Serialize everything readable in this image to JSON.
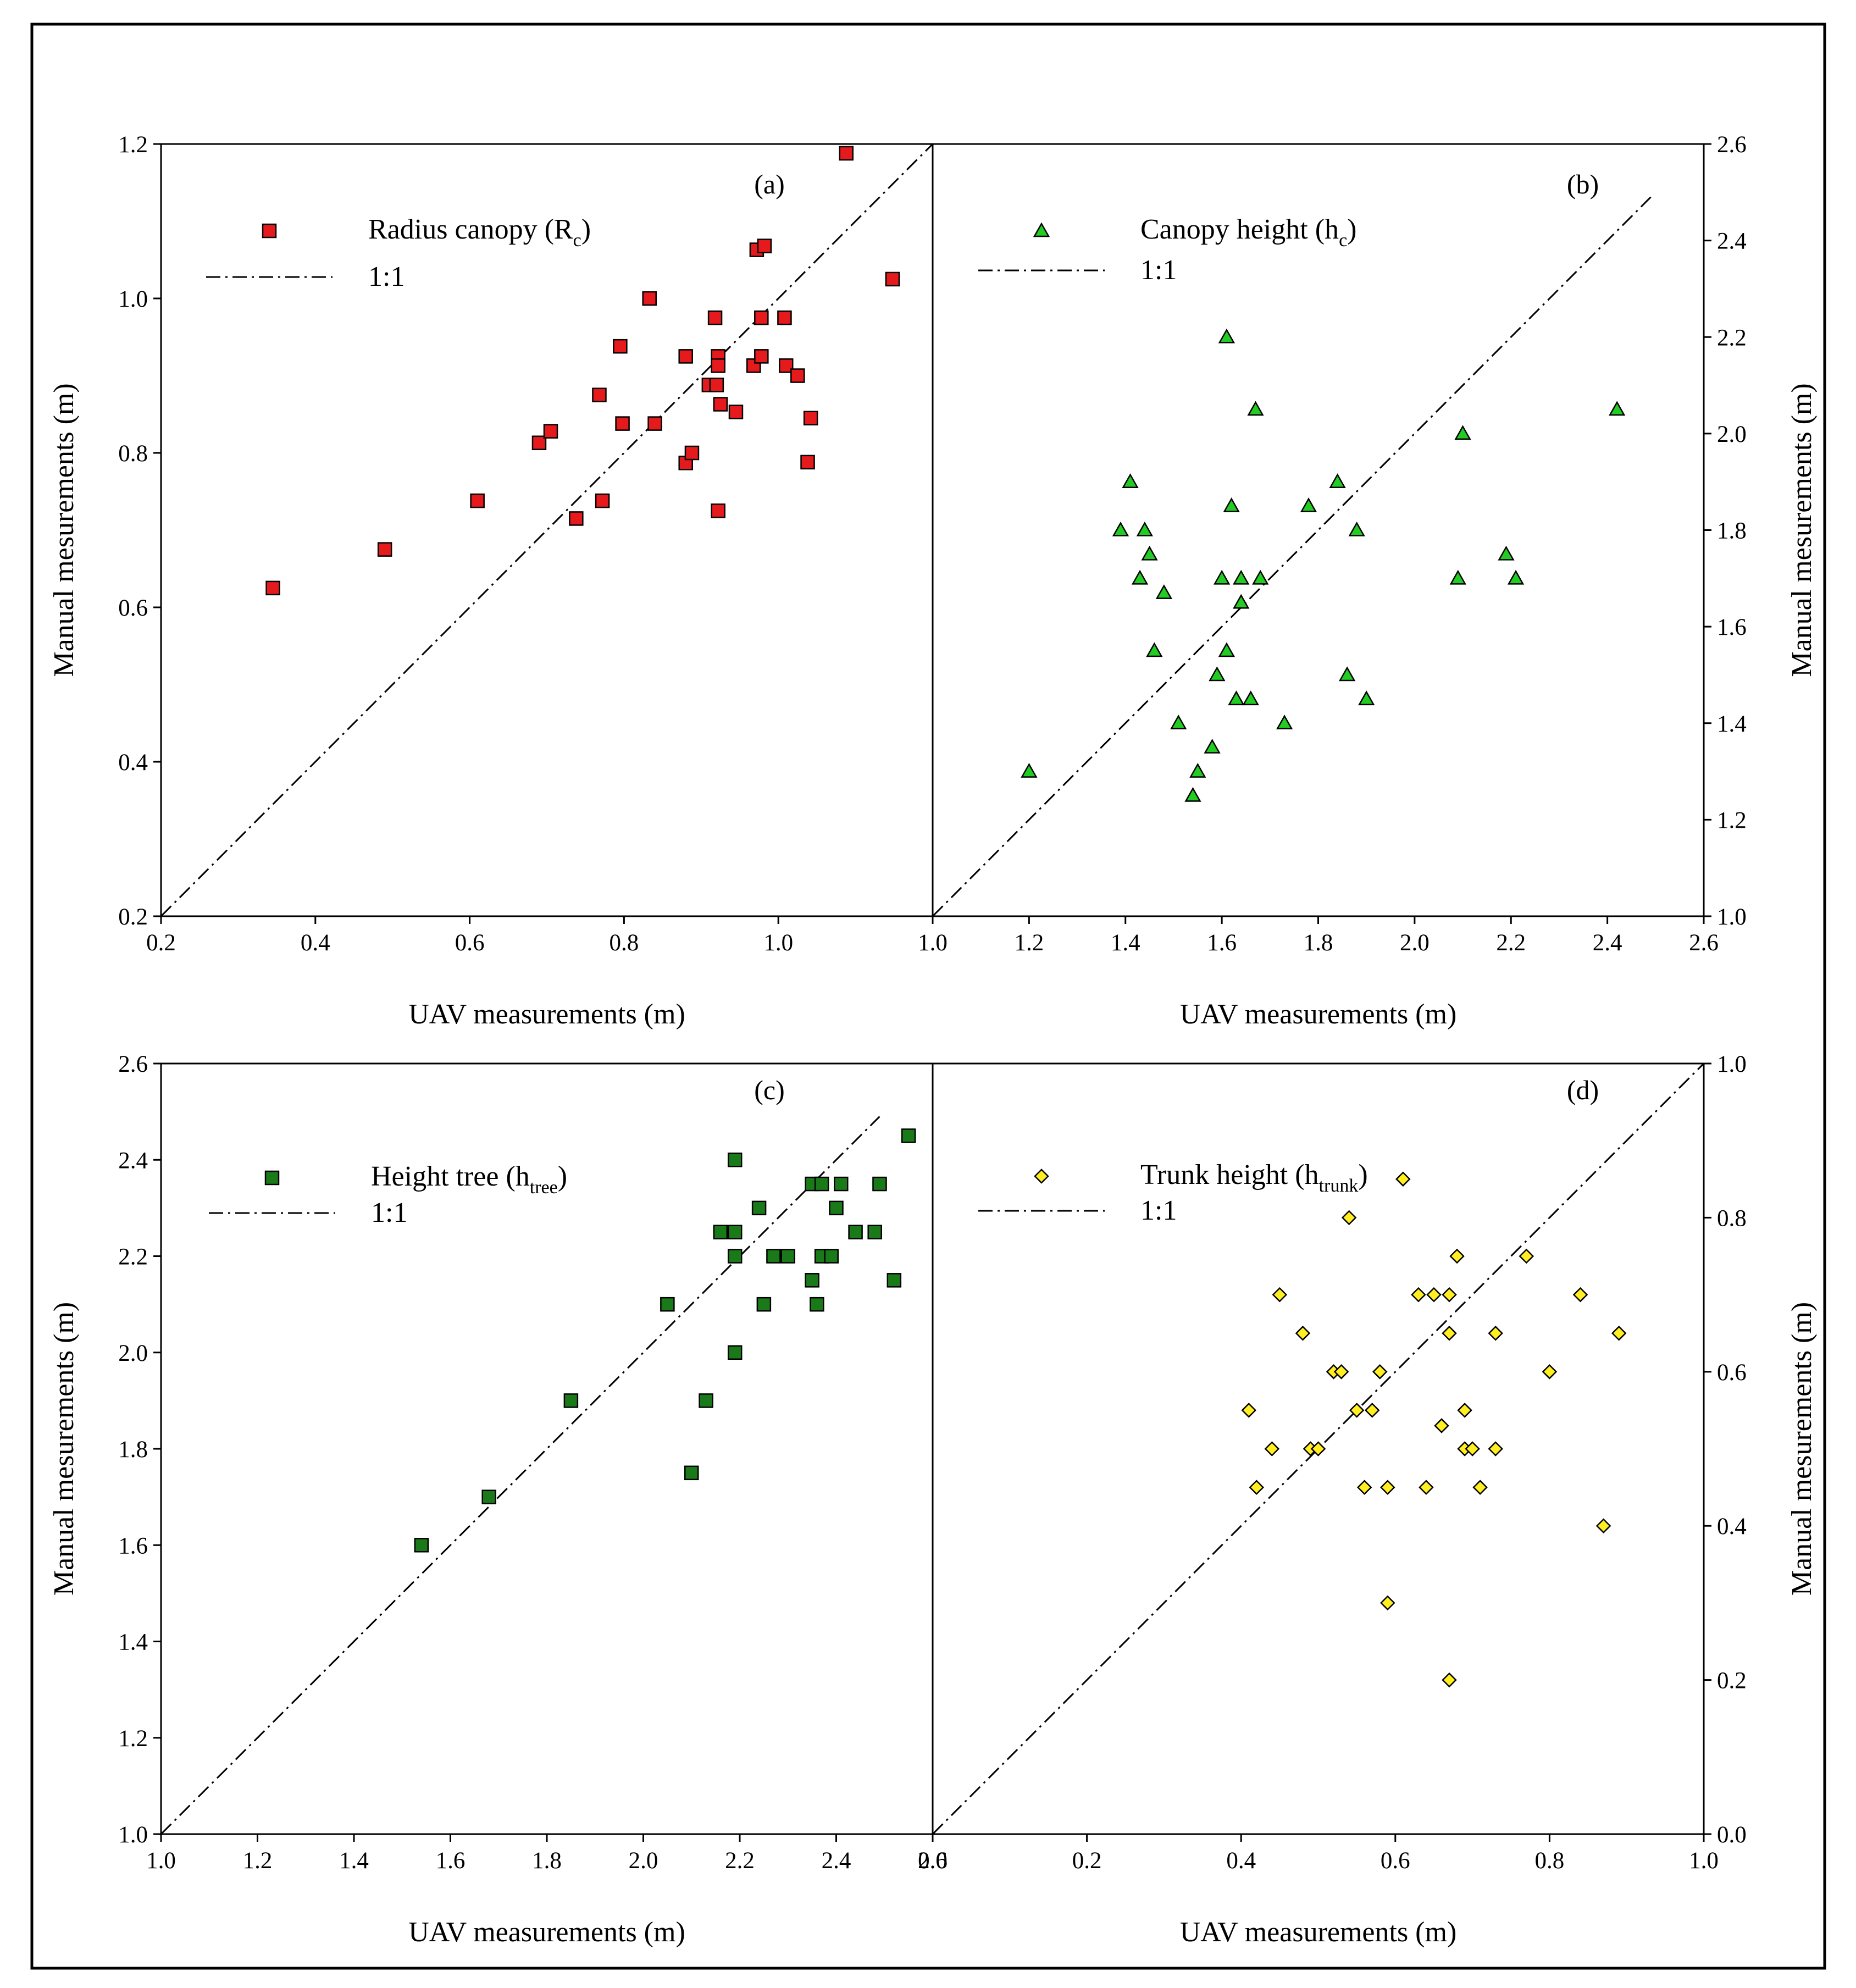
{
  "figure": {
    "chart_data": [
      {
        "id": "a",
        "type": "scatter",
        "tag": "(a)",
        "xlabel": "UAV measurements (m)",
        "ylabel": "Manual mesurements (m)",
        "xlim": [
          0.2,
          1.2
        ],
        "ylim": [
          0.2,
          1.2
        ],
        "xticks": [
          "0.2",
          "0.4",
          "0.6",
          "0.8",
          "1.0"
        ],
        "yticks": [
          "0.2",
          "0.4",
          "0.6",
          "0.8",
          "1.0",
          "1.2"
        ],
        "legend": {
          "series_label": "Radius canopy (R",
          "series_sub": "c",
          "series_close": ")",
          "line_label": "1:1"
        },
        "marker": {
          "shape": "square",
          "fill": "#e41a1c"
        },
        "ref_line": [
          [
            0.2,
            0.2
          ],
          [
            1.2,
            1.2
          ]
        ],
        "points": [
          [
            0.345,
            0.625
          ],
          [
            0.49,
            0.675
          ],
          [
            0.61,
            0.738
          ],
          [
            0.69,
            0.813
          ],
          [
            0.705,
            0.828
          ],
          [
            0.738,
            0.715
          ],
          [
            0.768,
            0.875
          ],
          [
            0.772,
            0.738
          ],
          [
            0.795,
            0.938
          ],
          [
            0.798,
            0.838
          ],
          [
            0.833,
            1.0
          ],
          [
            0.84,
            0.838
          ],
          [
            0.88,
            0.925
          ],
          [
            0.88,
            0.787
          ],
          [
            0.888,
            0.8
          ],
          [
            0.91,
            0.888
          ],
          [
            0.918,
            0.975
          ],
          [
            0.92,
            0.888
          ],
          [
            0.922,
            0.925
          ],
          [
            0.922,
            0.913
          ],
          [
            0.922,
            0.725
          ],
          [
            0.925,
            0.863
          ],
          [
            0.945,
            0.853
          ],
          [
            0.968,
            0.913
          ],
          [
            0.972,
            1.063
          ],
          [
            0.978,
            0.975
          ],
          [
            0.978,
            0.925
          ],
          [
            0.982,
            1.068
          ],
          [
            1.008,
            0.975
          ],
          [
            1.01,
            0.913
          ],
          [
            1.025,
            0.9
          ],
          [
            1.038,
            0.788
          ],
          [
            1.042,
            0.845
          ],
          [
            1.088,
            1.188
          ],
          [
            1.148,
            1.025
          ]
        ]
      },
      {
        "id": "b",
        "type": "scatter",
        "tag": "(b)",
        "xlabel": "UAV measurements (m)",
        "ylabel": "Manual mesurements (m)",
        "xlim": [
          1.0,
          2.6
        ],
        "ylim": [
          1.0,
          2.6
        ],
        "xticks": [
          "1.0",
          "1.2",
          "1.4",
          "1.6",
          "1.8",
          "2.0",
          "2.2",
          "2.4",
          "2.6"
        ],
        "yticks": [
          "1.0",
          "1.2",
          "1.4",
          "1.6",
          "1.8",
          "2.0",
          "2.2",
          "2.4",
          "2.6"
        ],
        "legend": {
          "series_label": "Canopy height (h",
          "series_sub": "c",
          "series_close": ")",
          "line_label": "1:1"
        },
        "marker": {
          "shape": "triangle",
          "fill": "#22cc22"
        },
        "ref_line": [
          [
            1.0,
            1.0
          ],
          [
            2.49,
            2.49
          ]
        ],
        "points": [
          [
            1.2,
            1.3
          ],
          [
            1.39,
            1.8
          ],
          [
            1.41,
            1.9
          ],
          [
            1.43,
            1.7
          ],
          [
            1.44,
            1.8
          ],
          [
            1.45,
            1.75
          ],
          [
            1.46,
            1.55
          ],
          [
            1.48,
            1.67
          ],
          [
            1.51,
            1.4
          ],
          [
            1.54,
            1.25
          ],
          [
            1.55,
            1.3
          ],
          [
            1.58,
            1.35
          ],
          [
            1.59,
            1.5
          ],
          [
            1.6,
            1.7
          ],
          [
            1.61,
            1.55
          ],
          [
            1.61,
            2.2
          ],
          [
            1.62,
            1.85
          ],
          [
            1.63,
            1.45
          ],
          [
            1.64,
            1.7
          ],
          [
            1.64,
            1.65
          ],
          [
            1.66,
            1.45
          ],
          [
            1.67,
            2.05
          ],
          [
            1.68,
            1.7
          ],
          [
            1.73,
            1.4
          ],
          [
            1.78,
            1.85
          ],
          [
            1.84,
            1.9
          ],
          [
            1.86,
            1.5
          ],
          [
            1.88,
            1.8
          ],
          [
            1.9,
            1.45
          ],
          [
            2.09,
            1.7
          ],
          [
            2.1,
            2.0
          ],
          [
            2.19,
            1.75
          ],
          [
            2.21,
            1.7
          ],
          [
            2.42,
            2.05
          ]
        ]
      },
      {
        "id": "c",
        "type": "scatter",
        "tag": "(c)",
        "xlabel": "UAV measurements (m)",
        "ylabel": "Manual mesurements (m)",
        "xlim": [
          1.0,
          2.6
        ],
        "ylim": [
          1.0,
          2.6
        ],
        "xticks": [
          "1.0",
          "1.2",
          "1.4",
          "1.6",
          "1.8",
          "2.0",
          "2.2",
          "2.4",
          "2.6"
        ],
        "yticks": [
          "1.0",
          "1.2",
          "1.4",
          "1.6",
          "1.8",
          "2.0",
          "2.2",
          "2.4",
          "2.6"
        ],
        "legend": {
          "series_label": "Height tree (h",
          "series_sub": "tree",
          "series_close": ")",
          "line_label": "1:1"
        },
        "marker": {
          "shape": "square",
          "fill": "#1a7a1a"
        },
        "ref_line": [
          [
            1.0,
            1.0
          ],
          [
            2.49,
            2.49
          ]
        ],
        "points": [
          [
            1.54,
            1.6
          ],
          [
            1.68,
            1.7
          ],
          [
            1.85,
            1.9
          ],
          [
            2.05,
            2.1
          ],
          [
            2.1,
            1.75
          ],
          [
            2.13,
            1.9
          ],
          [
            2.16,
            2.25
          ],
          [
            2.19,
            2.25
          ],
          [
            2.19,
            2.2
          ],
          [
            2.19,
            2.0
          ],
          [
            2.19,
            2.4
          ],
          [
            2.24,
            2.3
          ],
          [
            2.25,
            2.1
          ],
          [
            2.27,
            2.2
          ],
          [
            2.3,
            2.2
          ],
          [
            2.35,
            2.35
          ],
          [
            2.35,
            2.15
          ],
          [
            2.36,
            2.1
          ],
          [
            2.37,
            2.2
          ],
          [
            2.37,
            2.35
          ],
          [
            2.39,
            2.2
          ],
          [
            2.4,
            2.3
          ],
          [
            2.41,
            2.35
          ],
          [
            2.44,
            2.25
          ],
          [
            2.48,
            2.25
          ],
          [
            2.49,
            2.35
          ],
          [
            2.52,
            2.15
          ],
          [
            2.55,
            2.45
          ]
        ]
      },
      {
        "id": "d",
        "type": "scatter",
        "tag": "(d)",
        "xlabel": "UAV measurements (m)",
        "ylabel": "Manual mesurements (m)",
        "xlim": [
          0.0,
          1.0
        ],
        "ylim": [
          0.0,
          1.0
        ],
        "xticks": [
          "0.0",
          "0.2",
          "0.4",
          "0.6",
          "0.8",
          "1.0"
        ],
        "yticks": [
          "0.0",
          "0.2",
          "0.4",
          "0.6",
          "0.8",
          "1.0"
        ],
        "legend": {
          "series_label": "Trunk height (h",
          "series_sub": "trunk",
          "series_close": ")",
          "line_label": "1:1"
        },
        "marker": {
          "shape": "diamond",
          "fill": "#ffee22"
        },
        "ref_line": [
          [
            0.0,
            0.0
          ],
          [
            1.0,
            1.0
          ]
        ],
        "points": [
          [
            0.41,
            0.55
          ],
          [
            0.42,
            0.45
          ],
          [
            0.44,
            0.5
          ],
          [
            0.45,
            0.7
          ],
          [
            0.48,
            0.65
          ],
          [
            0.49,
            0.5
          ],
          [
            0.5,
            0.5
          ],
          [
            0.52,
            0.6
          ],
          [
            0.53,
            0.6
          ],
          [
            0.54,
            0.8
          ],
          [
            0.55,
            0.55
          ],
          [
            0.56,
            0.45
          ],
          [
            0.57,
            0.55
          ],
          [
            0.58,
            0.6
          ],
          [
            0.59,
            0.3
          ],
          [
            0.59,
            0.45
          ],
          [
            0.61,
            0.85
          ],
          [
            0.63,
            0.7
          ],
          [
            0.64,
            0.45
          ],
          [
            0.65,
            0.7
          ],
          [
            0.66,
            0.53
          ],
          [
            0.67,
            0.2
          ],
          [
            0.67,
            0.65
          ],
          [
            0.67,
            0.7
          ],
          [
            0.68,
            0.75
          ],
          [
            0.69,
            0.5
          ],
          [
            0.69,
            0.55
          ],
          [
            0.7,
            0.5
          ],
          [
            0.71,
            0.45
          ],
          [
            0.73,
            0.5
          ],
          [
            0.73,
            0.65
          ],
          [
            0.77,
            0.75
          ],
          [
            0.8,
            0.6
          ],
          [
            0.84,
            0.7
          ],
          [
            0.87,
            0.4
          ],
          [
            0.89,
            0.65
          ]
        ]
      }
    ]
  }
}
